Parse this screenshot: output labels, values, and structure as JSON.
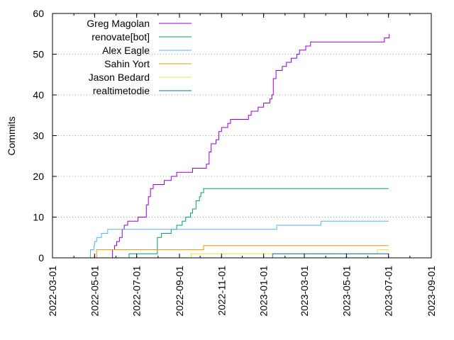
{
  "chart_data": {
    "type": "line",
    "title": "",
    "xlabel": "",
    "ylabel": "Commits",
    "x_axis": {
      "type": "date",
      "range": [
        "2022-03-01",
        "2023-09-01"
      ],
      "ticks": [
        "2022-03-01",
        "2022-05-01",
        "2022-07-01",
        "2022-09-01",
        "2022-11-01",
        "2023-01-01",
        "2023-03-01",
        "2023-05-01",
        "2023-07-01",
        "2023-09-01"
      ]
    },
    "y_axis": {
      "range": [
        0,
        60
      ],
      "ticks": [
        "0",
        "10",
        "20",
        "30",
        "40",
        "50",
        "60"
      ]
    },
    "grid": "horizontal, dotted",
    "legend": "top-left",
    "series": [
      {
        "name": "Greg Magolan",
        "color": "#9400d3",
        "points": [
          [
            "2022-05-25",
            0
          ],
          [
            "2022-05-27",
            2
          ],
          [
            "2022-05-30",
            3
          ],
          [
            "2022-06-02",
            4
          ],
          [
            "2022-06-06",
            5
          ],
          [
            "2022-06-10",
            7
          ],
          [
            "2022-06-13",
            8
          ],
          [
            "2022-06-18",
            9
          ],
          [
            "2022-07-03",
            10
          ],
          [
            "2022-07-13",
            10
          ],
          [
            "2022-07-15",
            13
          ],
          [
            "2022-07-18",
            15
          ],
          [
            "2022-07-21",
            17
          ],
          [
            "2022-07-25",
            18
          ],
          [
            "2022-08-10",
            19
          ],
          [
            "2022-08-20",
            20
          ],
          [
            "2022-08-28",
            21
          ],
          [
            "2022-09-20",
            22
          ],
          [
            "2022-10-10",
            23
          ],
          [
            "2022-10-14",
            26
          ],
          [
            "2022-10-17",
            28
          ],
          [
            "2022-10-24",
            29
          ],
          [
            "2022-10-28",
            31
          ],
          [
            "2022-11-01",
            32
          ],
          [
            "2022-11-10",
            33
          ],
          [
            "2022-11-14",
            34
          ],
          [
            "2022-12-10",
            35
          ],
          [
            "2022-12-14",
            36
          ],
          [
            "2022-12-24",
            37
          ],
          [
            "2023-01-01",
            38
          ],
          [
            "2023-01-10",
            39
          ],
          [
            "2023-01-13",
            40
          ],
          [
            "2023-01-15",
            44
          ],
          [
            "2023-01-19",
            46
          ],
          [
            "2023-01-28",
            47
          ],
          [
            "2023-02-03",
            48
          ],
          [
            "2023-02-10",
            49
          ],
          [
            "2023-02-18",
            50
          ],
          [
            "2023-02-22",
            51
          ],
          [
            "2023-03-03",
            52
          ],
          [
            "2023-03-10",
            53
          ],
          [
            "2023-06-15",
            53
          ],
          [
            "2023-06-25",
            54
          ],
          [
            "2023-07-02",
            54
          ],
          [
            "2023-07-02",
            55
          ]
        ]
      },
      {
        "name": "renovate[bot]",
        "color": "#009e73",
        "points": [
          [
            "2022-06-20",
            0
          ],
          [
            "2022-06-20",
            1
          ],
          [
            "2022-07-31",
            1
          ],
          [
            "2022-07-31",
            5
          ],
          [
            "2022-08-06",
            6
          ],
          [
            "2022-08-20",
            7
          ],
          [
            "2022-08-28",
            8
          ],
          [
            "2022-09-05",
            9
          ],
          [
            "2022-09-10",
            10
          ],
          [
            "2022-09-17",
            11
          ],
          [
            "2022-09-20",
            12
          ],
          [
            "2022-09-25",
            14
          ],
          [
            "2022-09-30",
            15
          ],
          [
            "2022-10-02",
            16
          ],
          [
            "2022-10-06",
            17
          ],
          [
            "2023-07-01",
            17
          ]
        ]
      },
      {
        "name": "Alex Eagle",
        "color": "#56b4e9",
        "points": [
          [
            "2022-04-24",
            0
          ],
          [
            "2022-04-25",
            2
          ],
          [
            "2022-04-30",
            3
          ],
          [
            "2022-05-01",
            4
          ],
          [
            "2022-05-04",
            5
          ],
          [
            "2022-05-11",
            6
          ],
          [
            "2022-05-20",
            7
          ],
          [
            "2022-12-20",
            7
          ],
          [
            "2023-01-20",
            8
          ],
          [
            "2023-03-25",
            9
          ],
          [
            "2023-07-01",
            9
          ]
        ]
      },
      {
        "name": "Sahin Yort",
        "color": "#e69f00",
        "points": [
          [
            "2022-04-29",
            0
          ],
          [
            "2022-05-04",
            2
          ],
          [
            "2022-10-03",
            2
          ],
          [
            "2022-10-06",
            3
          ],
          [
            "2023-07-01",
            3
          ]
        ]
      },
      {
        "name": "Jason Bedard",
        "color": "#f0e442",
        "points": [
          [
            "2022-09-17",
            0
          ],
          [
            "2022-09-18",
            1
          ],
          [
            "2023-05-15",
            1
          ],
          [
            "2023-06-15",
            2
          ],
          [
            "2023-07-01",
            2
          ]
        ]
      },
      {
        "name": "realtimetodie",
        "color": "#0072b2",
        "points": [
          [
            "2023-01-10",
            0
          ],
          [
            "2023-01-14",
            1
          ],
          [
            "2023-07-01",
            1
          ]
        ]
      }
    ]
  }
}
